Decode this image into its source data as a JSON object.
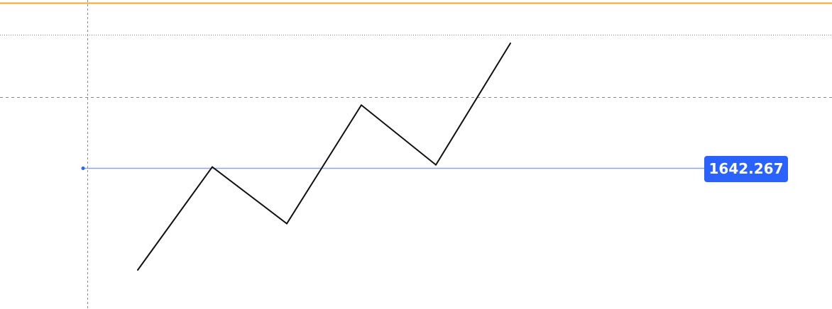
{
  "chart": {
    "horizontal_line_price": "1642.267"
  },
  "colors": {
    "background": "#ffffff",
    "top_line": "#f5a623",
    "guide_line": "#8a8a8a",
    "horizontal_line": "#8ea6dd",
    "price_badge": "#2962ff",
    "zigzag": "#111111"
  },
  "chart_data": {
    "type": "line",
    "series": [
      {
        "values": [
          0,
          1,
          0.45,
          1.6,
          1.02,
          2.2
        ]
      }
    ],
    "grid": false
  }
}
